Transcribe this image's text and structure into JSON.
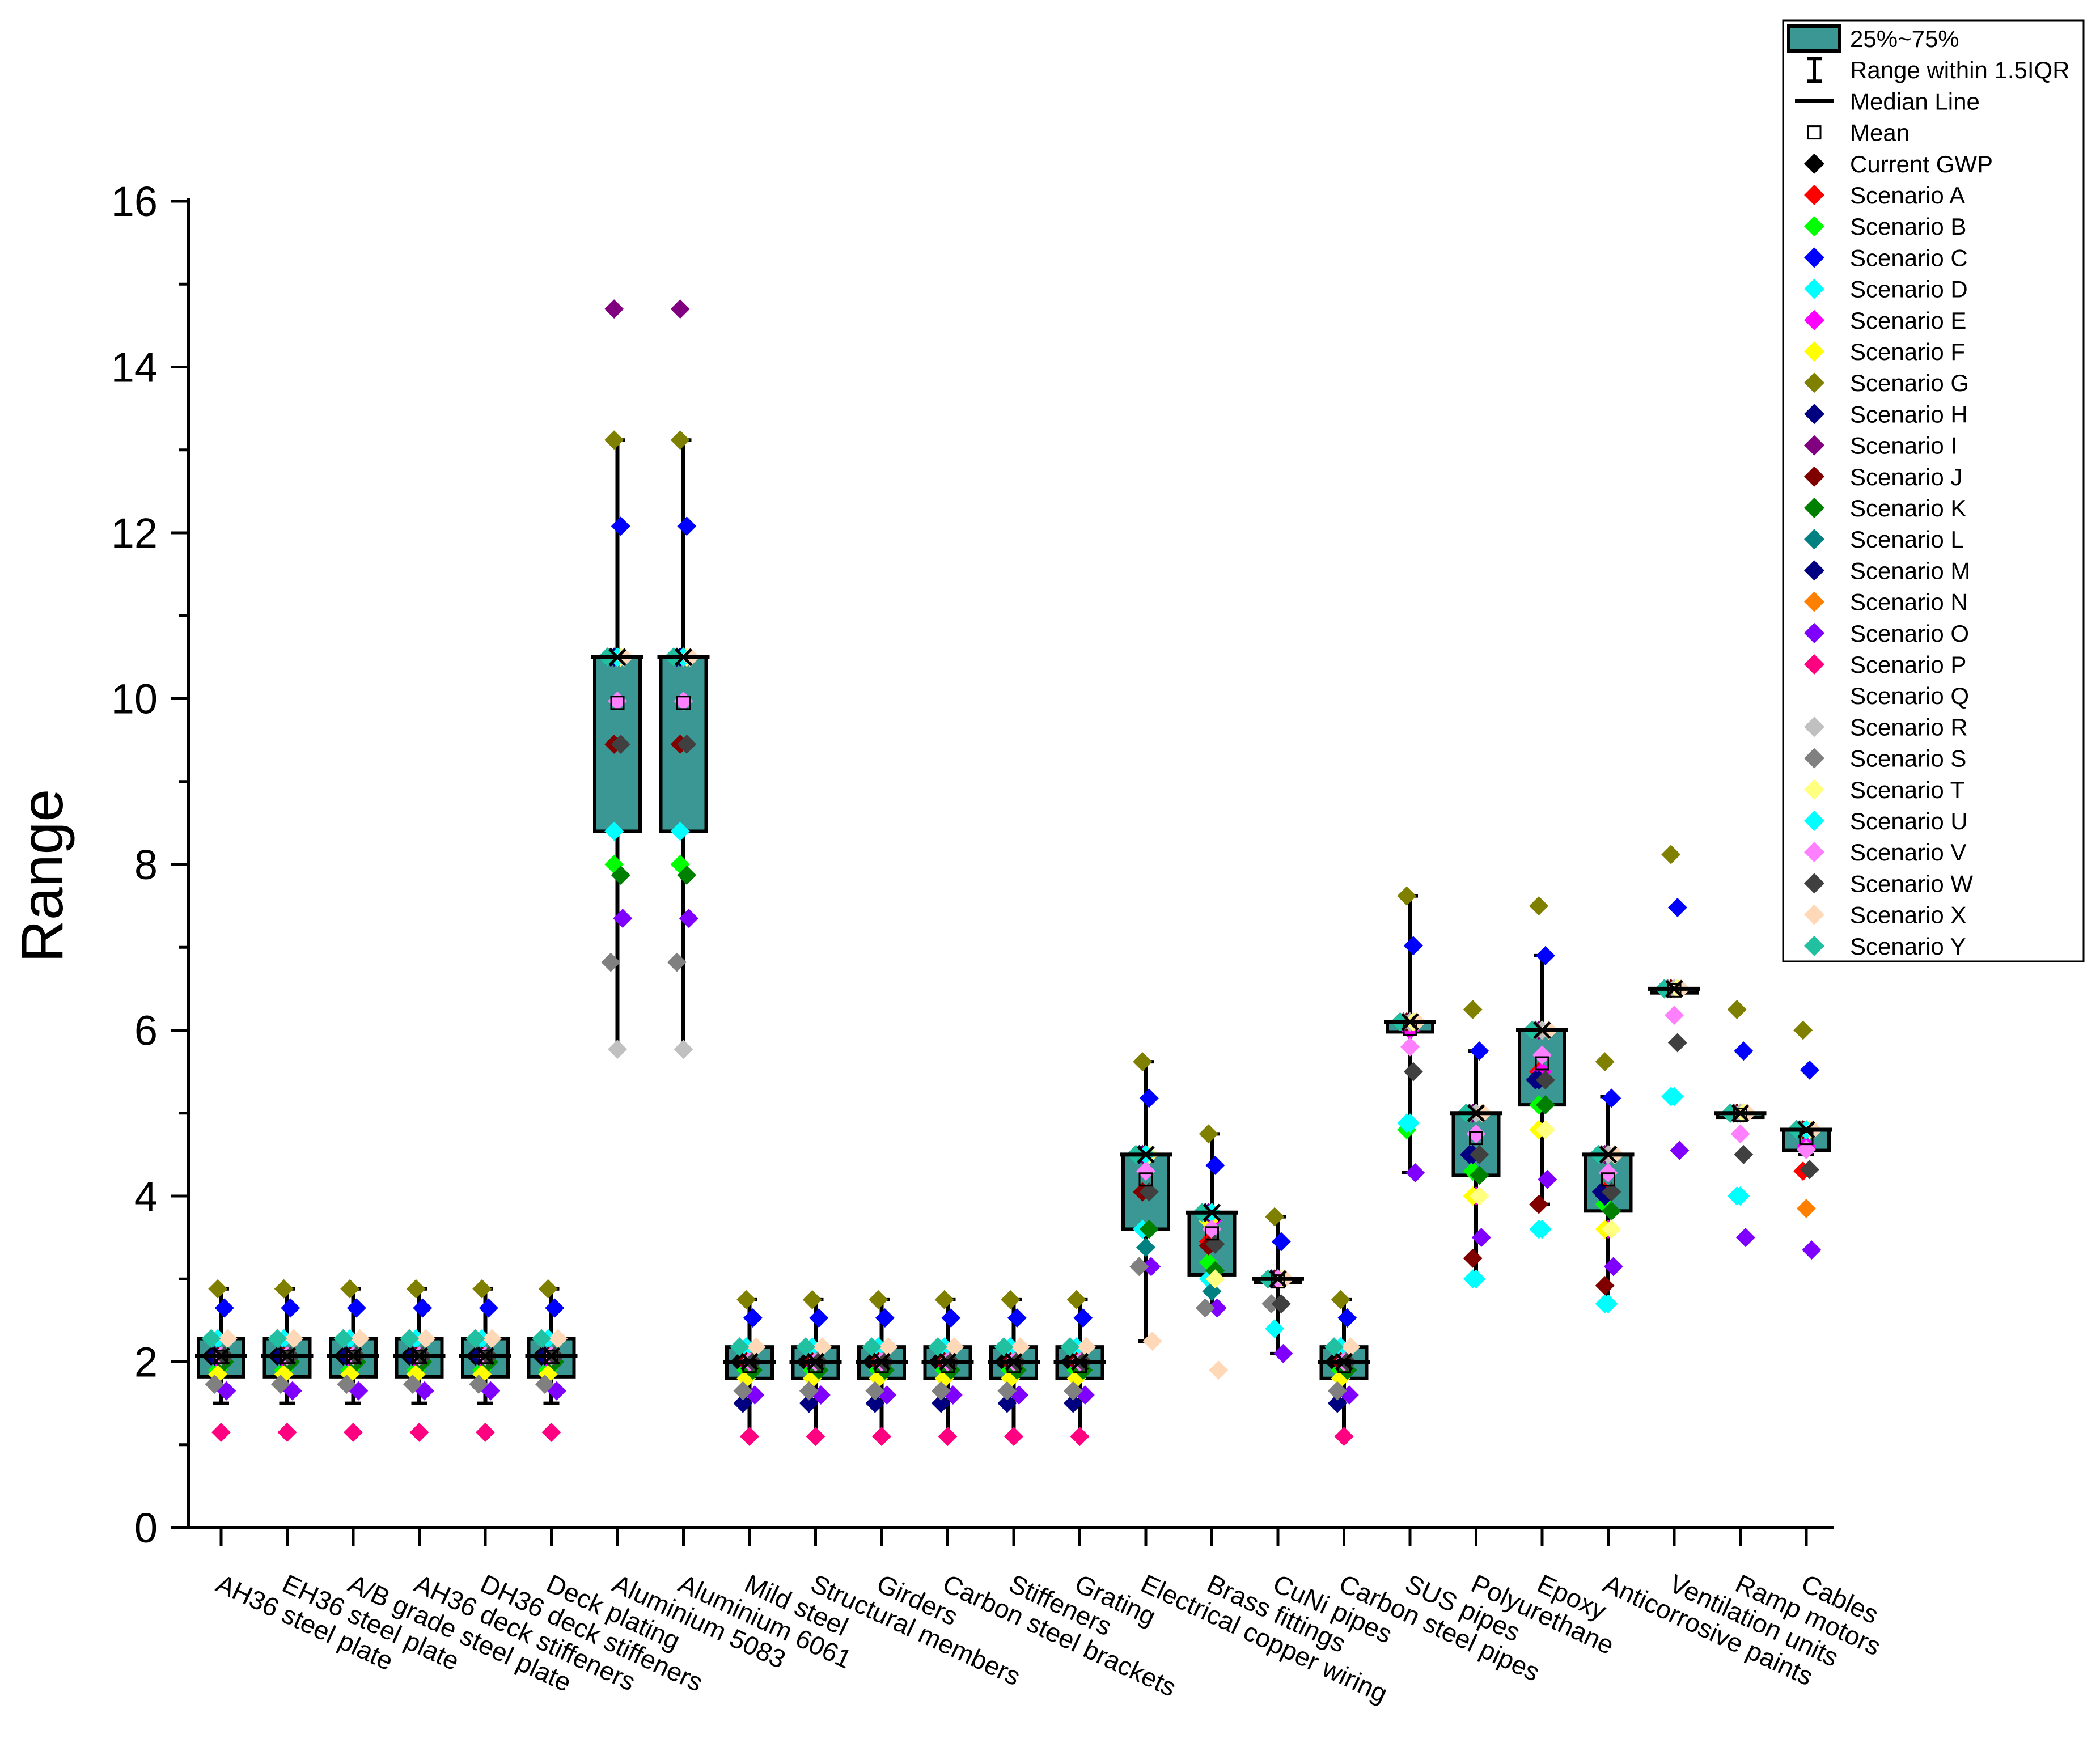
{
  "chart_data": {
    "type": "box",
    "ylabel": "Range",
    "xlabel": "",
    "ylim": [
      0,
      16
    ],
    "yticks": [
      "0",
      "2",
      "4",
      "6",
      "8",
      "10",
      "12",
      "14",
      "16"
    ],
    "grid": false,
    "legend_position": "top-right",
    "box_color": "#3b9793",
    "categories": [
      "AH36 steel plate",
      "EH36 steel plate",
      "A/B grade steel plate",
      "AH36 deck stiffeners",
      "DH36 deck stiffeners",
      "Deck plating",
      "Aluminium 5083",
      "Aluminium 6061",
      "Mild steel",
      "Structural members",
      "Girders",
      "Carbon steel brackets",
      "Stiffeners",
      "Grating",
      "Electrical copper wiring",
      "Brass fittings",
      "CuNi pipes",
      "Carbon steel pipes",
      "SUS pipes",
      "Polyurethane",
      "Epoxy",
      "Anticorrosive paints",
      "Ventilation units",
      "Ramp motors",
      "Cables"
    ],
    "boxes": [
      {
        "q1": 1.82,
        "median": 2.07,
        "q3": 2.28,
        "mean": 2.06,
        "whisker_low": 1.5,
        "whisker_high": 2.88
      },
      {
        "q1": 1.82,
        "median": 2.07,
        "q3": 2.28,
        "mean": 2.06,
        "whisker_low": 1.5,
        "whisker_high": 2.88
      },
      {
        "q1": 1.82,
        "median": 2.07,
        "q3": 2.28,
        "mean": 2.06,
        "whisker_low": 1.5,
        "whisker_high": 2.88
      },
      {
        "q1": 1.82,
        "median": 2.07,
        "q3": 2.28,
        "mean": 2.06,
        "whisker_low": 1.5,
        "whisker_high": 2.88
      },
      {
        "q1": 1.82,
        "median": 2.07,
        "q3": 2.28,
        "mean": 2.06,
        "whisker_low": 1.5,
        "whisker_high": 2.88
      },
      {
        "q1": 1.82,
        "median": 2.07,
        "q3": 2.28,
        "mean": 2.06,
        "whisker_low": 1.5,
        "whisker_high": 2.88
      },
      {
        "q1": 8.4,
        "median": 10.5,
        "q3": 10.5,
        "mean": 9.95,
        "whisker_low": 5.77,
        "whisker_high": 13.12
      },
      {
        "q1": 8.4,
        "median": 10.5,
        "q3": 10.5,
        "mean": 9.95,
        "whisker_low": 5.77,
        "whisker_high": 13.12
      },
      {
        "q1": 1.8,
        "median": 2.0,
        "q3": 2.18,
        "mean": 1.95,
        "whisker_low": 1.1,
        "whisker_high": 2.75
      },
      {
        "q1": 1.8,
        "median": 2.0,
        "q3": 2.18,
        "mean": 1.95,
        "whisker_low": 1.1,
        "whisker_high": 2.75
      },
      {
        "q1": 1.8,
        "median": 2.0,
        "q3": 2.18,
        "mean": 1.95,
        "whisker_low": 1.1,
        "whisker_high": 2.75
      },
      {
        "q1": 1.8,
        "median": 2.0,
        "q3": 2.18,
        "mean": 1.95,
        "whisker_low": 1.1,
        "whisker_high": 2.75
      },
      {
        "q1": 1.8,
        "median": 2.0,
        "q3": 2.18,
        "mean": 1.95,
        "whisker_low": 1.1,
        "whisker_high": 2.75
      },
      {
        "q1": 1.8,
        "median": 2.0,
        "q3": 2.18,
        "mean": 1.95,
        "whisker_low": 1.1,
        "whisker_high": 2.75
      },
      {
        "q1": 3.6,
        "median": 4.5,
        "q3": 4.5,
        "mean": 4.2,
        "whisker_low": 2.25,
        "whisker_high": 5.62
      },
      {
        "q1": 3.05,
        "median": 3.8,
        "q3": 3.8,
        "mean": 3.55,
        "whisker_low": 2.65,
        "whisker_high": 4.75
      },
      {
        "q1": 2.96,
        "median": 3.0,
        "q3": 3.0,
        "mean": 2.97,
        "whisker_low": 2.1,
        "whisker_high": 3.75
      },
      {
        "q1": 1.8,
        "median": 2.0,
        "q3": 2.18,
        "mean": 1.95,
        "whisker_low": 1.1,
        "whisker_high": 2.75
      },
      {
        "q1": 5.98,
        "median": 6.1,
        "q3": 6.1,
        "mean": 6.02,
        "whisker_low": 4.28,
        "whisker_high": 7.62
      },
      {
        "q1": 4.25,
        "median": 5.0,
        "q3": 5.0,
        "mean": 4.7,
        "whisker_low": 3.0,
        "whisker_high": 5.75
      },
      {
        "q1": 5.1,
        "median": 6.0,
        "q3": 6.0,
        "mean": 5.6,
        "whisker_low": 3.9,
        "whisker_high": 6.9
      },
      {
        "q1": 3.82,
        "median": 4.5,
        "q3": 4.5,
        "mean": 4.2,
        "whisker_low": 2.7,
        "whisker_high": 5.2
      },
      {
        "q1": 6.45,
        "median": 6.5,
        "q3": 6.5,
        "mean": 6.48,
        "whisker_low": 6.45,
        "whisker_high": 6.55
      },
      {
        "q1": 4.95,
        "median": 5.0,
        "q3": 5.0,
        "mean": 4.98,
        "whisker_low": 4.95,
        "whisker_high": 5.05
      },
      {
        "q1": 4.55,
        "median": 4.8,
        "q3": 4.8,
        "mean": 4.7,
        "whisker_low": 4.5,
        "whisker_high": 4.85
      }
    ],
    "series": [
      {
        "name": "Current GWP",
        "color": "#000000",
        "offset": -0.15,
        "values": [
          2.07,
          2.07,
          2.07,
          2.07,
          2.07,
          2.07,
          10.5,
          10.5,
          2.0,
          2.0,
          2.0,
          2.0,
          2.0,
          2.0,
          4.5,
          3.8,
          3.0,
          2.0,
          6.1,
          5.0,
          6.0,
          4.5,
          6.5,
          5.0,
          4.8
        ]
      },
      {
        "name": "Scenario A",
        "color": "#ff0000",
        "offset": -0.05,
        "values": [
          2.07,
          2.07,
          2.07,
          2.07,
          2.07,
          2.07,
          10.5,
          10.5,
          2.0,
          2.0,
          2.0,
          2.0,
          2.0,
          2.0,
          4.05,
          3.45,
          3.0,
          2.0,
          6.1,
          4.5,
          5.5,
          4.05,
          6.5,
          5.0,
          4.3
        ]
      },
      {
        "name": "Scenario B",
        "color": "#00ff00",
        "offset": -0.05,
        "values": [
          1.9,
          1.9,
          1.9,
          1.9,
          1.9,
          1.9,
          8.0,
          8.0,
          1.9,
          1.9,
          1.9,
          1.9,
          1.9,
          1.9,
          3.6,
          3.2,
          3.0,
          1.9,
          4.8,
          4.3,
          5.1,
          3.9,
          6.5,
          5.0,
          4.8
        ]
      },
      {
        "name": "Scenario C",
        "color": "#0000ff",
        "offset": 0.05,
        "values": [
          2.65,
          2.65,
          2.65,
          2.65,
          2.65,
          2.65,
          12.08,
          12.08,
          2.53,
          2.53,
          2.53,
          2.53,
          2.53,
          2.53,
          5.18,
          4.37,
          3.45,
          2.53,
          7.02,
          5.75,
          6.9,
          5.18,
          7.48,
          5.75,
          5.52
        ]
      },
      {
        "name": "Scenario D",
        "color": "#00ffff",
        "offset": -0.05,
        "values": [
          2.28,
          2.28,
          2.28,
          2.28,
          2.28,
          2.28,
          8.4,
          8.4,
          2.18,
          2.18,
          2.18,
          2.18,
          2.18,
          2.18,
          3.6,
          3.0,
          2.4,
          2.18,
          4.88,
          3.0,
          3.6,
          2.7,
          5.2,
          4.0,
          4.8
        ]
      },
      {
        "name": "Scenario E",
        "color": "#ff00ff",
        "offset": 0.0,
        "values": [
          2.0,
          2.0,
          2.0,
          2.0,
          2.0,
          2.0,
          10.5,
          10.5,
          1.95,
          1.95,
          1.95,
          1.95,
          1.95,
          1.95,
          4.3,
          3.7,
          3.0,
          1.95,
          6.0,
          4.0,
          5.5,
          3.6,
          6.5,
          5.0,
          4.6
        ]
      },
      {
        "name": "Scenario F",
        "color": "#ffff00",
        "offset": -0.05,
        "values": [
          1.85,
          1.85,
          1.85,
          1.85,
          1.85,
          1.85,
          10.5,
          10.5,
          1.8,
          1.8,
          1.8,
          1.8,
          1.8,
          1.8,
          4.5,
          3.7,
          3.0,
          1.8,
          6.1,
          4.0,
          4.8,
          3.6,
          6.5,
          5.0,
          4.8
        ]
      },
      {
        "name": "Scenario G",
        "color": "#808000",
        "offset": -0.05,
        "values": [
          2.88,
          2.88,
          2.88,
          2.88,
          2.88,
          2.88,
          13.12,
          13.12,
          2.75,
          2.75,
          2.75,
          2.75,
          2.75,
          2.75,
          5.62,
          4.75,
          3.75,
          2.75,
          7.62,
          6.25,
          7.5,
          5.62,
          8.12,
          6.25,
          6.0
        ]
      },
      {
        "name": "Scenario H",
        "color": "#000080",
        "offset": -0.05,
        "values": [
          2.07,
          2.07,
          2.07,
          2.07,
          2.07,
          2.07,
          10.5,
          10.5,
          2.0,
          2.0,
          2.0,
          2.0,
          2.0,
          2.0,
          4.5,
          3.8,
          3.0,
          2.0,
          6.1,
          4.5,
          5.4,
          4.0,
          6.5,
          5.0,
          4.8
        ]
      },
      {
        "name": "Scenario I",
        "color": "#800080",
        "offset": -0.05,
        "values": [
          2.07,
          2.07,
          2.07,
          2.07,
          2.07,
          2.07,
          14.7,
          14.7,
          2.0,
          2.0,
          2.0,
          2.0,
          2.0,
          2.0,
          4.5,
          3.8,
          3.0,
          2.0,
          6.1,
          5.0,
          6.0,
          4.5,
          6.5,
          5.0,
          4.8
        ]
      },
      {
        "name": "Scenario J",
        "color": "#800000",
        "offset": -0.05,
        "values": [
          2.07,
          2.07,
          2.07,
          2.07,
          2.07,
          2.07,
          9.45,
          9.45,
          2.0,
          2.0,
          2.0,
          2.0,
          2.0,
          2.0,
          4.05,
          3.4,
          3.0,
          2.0,
          6.1,
          3.25,
          3.9,
          2.92,
          6.5,
          5.0,
          4.8
        ]
      },
      {
        "name": "Scenario K",
        "color": "#008000",
        "offset": 0.05,
        "values": [
          2.0,
          2.0,
          2.0,
          2.0,
          2.0,
          2.0,
          7.87,
          7.87,
          1.9,
          1.9,
          1.9,
          1.9,
          1.9,
          1.9,
          3.6,
          3.1,
          3.0,
          1.9,
          6.1,
          4.25,
          5.1,
          3.82,
          6.5,
          5.0,
          4.8
        ]
      },
      {
        "name": "Scenario L",
        "color": "#008080",
        "offset": 0.0,
        "values": [
          2.07,
          2.07,
          2.07,
          2.07,
          2.07,
          2.07,
          10.5,
          10.5,
          2.0,
          2.0,
          2.0,
          2.0,
          2.0,
          2.0,
          3.38,
          2.85,
          3.0,
          2.0,
          6.1,
          5.0,
          6.0,
          4.5,
          6.5,
          5.0,
          4.8
        ]
      },
      {
        "name": "Scenario M",
        "color": "#000080",
        "offset": -0.1,
        "values": [
          2.07,
          2.07,
          2.07,
          2.07,
          2.07,
          2.07,
          10.5,
          10.5,
          1.5,
          1.5,
          1.5,
          1.5,
          1.5,
          1.5,
          4.5,
          3.8,
          3.0,
          1.5,
          6.1,
          4.5,
          5.4,
          4.05,
          6.5,
          5.0,
          4.8
        ]
      },
      {
        "name": "Scenario N",
        "color": "#ff8000",
        "offset": 0.0,
        "values": [
          2.07,
          2.07,
          2.07,
          2.07,
          2.07,
          2.07,
          10.5,
          10.5,
          2.0,
          2.0,
          2.0,
          2.0,
          2.0,
          2.0,
          4.5,
          3.8,
          3.0,
          2.0,
          6.1,
          5.0,
          6.0,
          4.5,
          6.5,
          5.0,
          3.85
        ]
      },
      {
        "name": "Scenario O",
        "color": "#8000ff",
        "offset": 0.08,
        "values": [
          1.65,
          1.65,
          1.65,
          1.65,
          1.65,
          1.65,
          7.35,
          7.35,
          1.6,
          1.6,
          1.6,
          1.6,
          1.6,
          1.6,
          3.15,
          2.65,
          2.1,
          1.6,
          4.28,
          3.5,
          4.2,
          3.15,
          4.55,
          3.5,
          3.35
        ]
      },
      {
        "name": "Scenario P",
        "color": "#ff0080",
        "offset": 0.0,
        "values": [
          1.15,
          1.15,
          1.15,
          1.15,
          1.15,
          1.15,
          10.5,
          10.5,
          1.1,
          1.1,
          1.1,
          1.1,
          1.1,
          1.1,
          4.5,
          3.8,
          3.0,
          1.1,
          6.1,
          5.0,
          6.0,
          4.5,
          6.5,
          5.0,
          4.8
        ]
      },
      {
        "name": "Scenario Q",
        "color": "#ffffff",
        "offset": 0.0,
        "values": [
          2.07,
          2.07,
          2.07,
          2.07,
          2.07,
          2.07,
          10.5,
          10.5,
          2.0,
          2.0,
          2.0,
          2.0,
          2.0,
          2.0,
          4.5,
          3.8,
          3.0,
          2.0,
          6.1,
          5.0,
          6.0,
          4.5,
          6.5,
          5.0,
          4.8
        ]
      },
      {
        "name": "Scenario R",
        "color": "#c0c0c0",
        "offset": 0.0,
        "values": [
          2.07,
          2.07,
          2.07,
          2.07,
          2.07,
          2.07,
          5.77,
          5.77,
          2.0,
          2.0,
          2.0,
          2.0,
          2.0,
          2.0,
          4.5,
          3.8,
          3.0,
          2.0,
          6.1,
          5.0,
          6.0,
          4.5,
          6.5,
          5.0,
          4.8
        ]
      },
      {
        "name": "Scenario S",
        "color": "#808080",
        "offset": -0.1,
        "values": [
          1.73,
          1.73,
          1.73,
          1.73,
          1.73,
          1.73,
          6.82,
          6.82,
          1.65,
          1.65,
          1.65,
          1.65,
          1.65,
          1.65,
          3.15,
          2.65,
          2.7,
          1.65,
          6.1,
          5.0,
          6.0,
          4.5,
          6.5,
          5.0,
          4.8
        ]
      },
      {
        "name": "Scenario T",
        "color": "#ffff80",
        "offset": 0.05,
        "values": [
          2.07,
          2.07,
          2.07,
          2.07,
          2.07,
          2.07,
          10.5,
          10.5,
          2.0,
          2.0,
          2.0,
          2.0,
          2.0,
          2.0,
          4.5,
          3.0,
          3.0,
          2.0,
          6.1,
          4.0,
          4.8,
          3.6,
          6.5,
          5.0,
          4.8
        ]
      },
      {
        "name": "Scenario U",
        "color": "#00ffff",
        "offset": 0.0,
        "values": [
          2.07,
          2.07,
          2.07,
          2.07,
          2.07,
          2.07,
          10.5,
          10.5,
          2.0,
          2.0,
          2.0,
          2.0,
          2.0,
          2.0,
          4.5,
          3.8,
          3.0,
          2.0,
          4.88,
          3.0,
          3.6,
          2.7,
          5.2,
          4.0,
          4.8
        ]
      },
      {
        "name": "Scenario V",
        "color": "#ff80ff",
        "offset": 0.0,
        "values": [
          2.07,
          2.07,
          2.07,
          2.07,
          2.07,
          2.07,
          9.97,
          9.97,
          2.0,
          2.0,
          2.0,
          2.0,
          2.0,
          2.0,
          4.3,
          3.6,
          3.0,
          2.0,
          5.8,
          4.75,
          5.7,
          4.28,
          6.18,
          4.75,
          4.56
        ]
      },
      {
        "name": "Scenario W",
        "color": "#404040",
        "offset": 0.05,
        "values": [
          2.07,
          2.07,
          2.07,
          2.07,
          2.07,
          2.07,
          9.45,
          9.45,
          2.0,
          2.0,
          2.0,
          2.0,
          2.0,
          2.0,
          4.05,
          3.42,
          2.7,
          2.0,
          5.5,
          4.5,
          5.4,
          4.05,
          5.85,
          4.5,
          4.32
        ]
      },
      {
        "name": "Scenario X",
        "color": "#ffd8b8",
        "offset": 0.1,
        "values": [
          2.28,
          2.28,
          2.28,
          2.28,
          2.28,
          2.28,
          10.5,
          10.5,
          2.18,
          2.18,
          2.18,
          2.18,
          2.18,
          2.18,
          2.25,
          1.9,
          3.0,
          2.18,
          6.1,
          5.0,
          6.0,
          4.5,
          6.5,
          5.0,
          4.8
        ]
      },
      {
        "name": "Scenario Y",
        "color": "#20c0a0",
        "offset": -0.15,
        "values": [
          2.28,
          2.28,
          2.28,
          2.28,
          2.28,
          2.28,
          10.5,
          10.5,
          2.18,
          2.18,
          2.18,
          2.18,
          2.18,
          2.18,
          4.5,
          3.8,
          3.0,
          2.18,
          6.1,
          5.0,
          6.0,
          4.5,
          6.5,
          5.0,
          4.8
        ]
      }
    ],
    "legend": {
      "box_label": "25%~75%",
      "whisker_label": "Range within 1.5IQR",
      "median_label": "Median Line",
      "mean_label": "Mean"
    }
  }
}
